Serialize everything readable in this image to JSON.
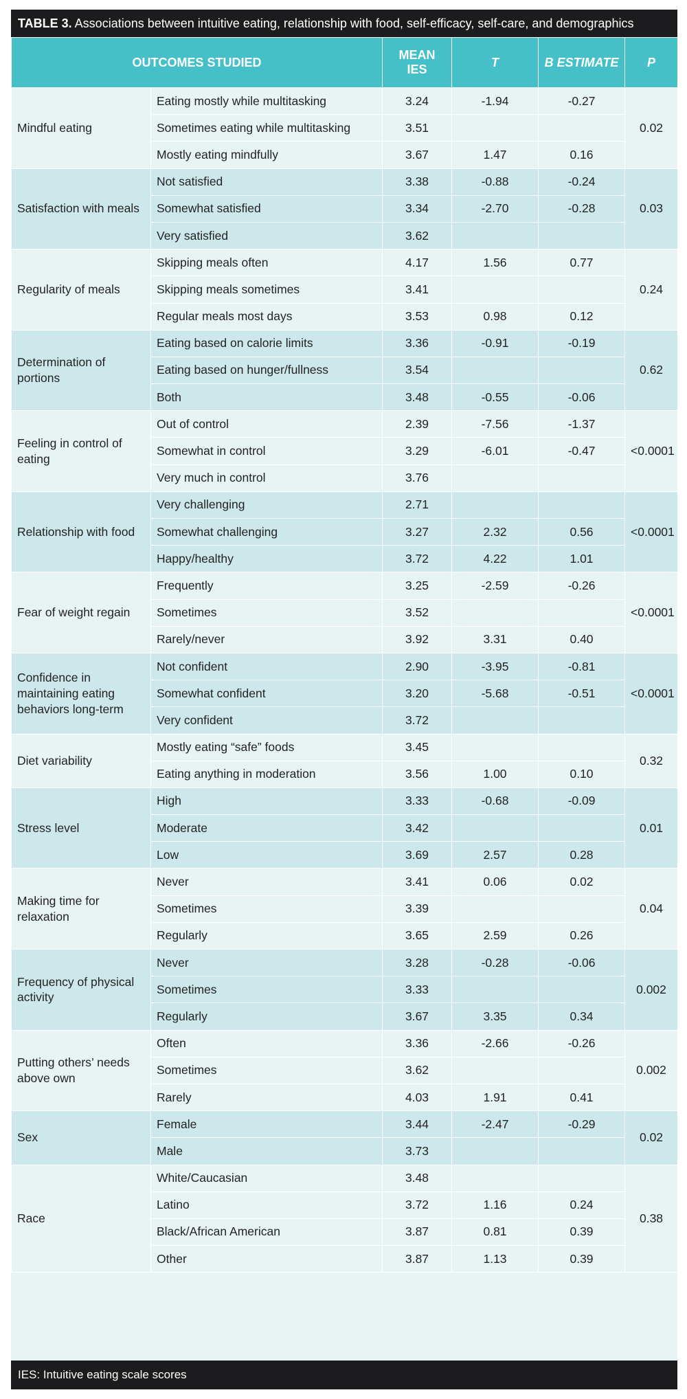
{
  "caption": {
    "label": "TABLE 3.",
    "text": " Associations between intuitive eating, relationship with food, self-efficacy, self-care, and demographics"
  },
  "headers": {
    "outcomes": "OUTCOMES STUDIED",
    "mean_ies": "MEAN IES",
    "t": "T",
    "b": "B ESTIMATE",
    "p": "P"
  },
  "groups": [
    {
      "category": "Mindful eating",
      "p": "0.02",
      "rows": [
        {
          "option": "Eating mostly while multitasking",
          "mean": "3.24",
          "t": "-1.94",
          "b": "-0.27"
        },
        {
          "option": "Sometimes eating while multitasking",
          "mean": "3.51",
          "t": "",
          "b": ""
        },
        {
          "option": "Mostly eating mindfully",
          "mean": "3.67",
          "t": "1.47",
          "b": "0.16"
        }
      ]
    },
    {
      "category": "Satisfaction with meals",
      "p": "0.03",
      "rows": [
        {
          "option": "Not satisfied",
          "mean": "3.38",
          "t": "-0.88",
          "b": "-0.24"
        },
        {
          "option": "Somewhat satisfied",
          "mean": "3.34",
          "t": "-2.70",
          "b": "-0.28"
        },
        {
          "option": "Very satisfied",
          "mean": "3.62",
          "t": "",
          "b": ""
        }
      ]
    },
    {
      "category": "Regularity of meals",
      "p": "0.24",
      "rows": [
        {
          "option": "Skipping meals often",
          "mean": "4.17",
          "t": "1.56",
          "b": "0.77"
        },
        {
          "option": "Skipping meals sometimes",
          "mean": "3.41",
          "t": "",
          "b": ""
        },
        {
          "option": "Regular meals most days",
          "mean": "3.53",
          "t": "0.98",
          "b": "0.12"
        }
      ]
    },
    {
      "category": "Determination of portions",
      "p": "0.62",
      "rows": [
        {
          "option": "Eating based on calorie limits",
          "mean": "3.36",
          "t": "-0.91",
          "b": "-0.19"
        },
        {
          "option": "Eating based on hunger/fullness",
          "mean": "3.54",
          "t": "",
          "b": ""
        },
        {
          "option": "Both",
          "mean": "3.48",
          "t": "-0.55",
          "b": "-0.06"
        }
      ]
    },
    {
      "category": "Feeling in control of eating",
      "p": "<0.0001",
      "rows": [
        {
          "option": "Out of control",
          "mean": "2.39",
          "t": "-7.56",
          "b": "-1.37"
        },
        {
          "option": "Somewhat in control",
          "mean": "3.29",
          "t": "-6.01",
          "b": "-0.47"
        },
        {
          "option": "Very much in control",
          "mean": "3.76",
          "t": "",
          "b": ""
        }
      ]
    },
    {
      "category": "Relationship with food",
      "p": "<0.0001",
      "rows": [
        {
          "option": "Very challenging",
          "mean": "2.71",
          "t": "",
          "b": ""
        },
        {
          "option": "Somewhat challenging",
          "mean": "3.27",
          "t": "2.32",
          "b": "0.56"
        },
        {
          "option": "Happy/healthy",
          "mean": "3.72",
          "t": "4.22",
          "b": "1.01"
        }
      ]
    },
    {
      "category": "Fear of weight regain",
      "p": "<0.0001",
      "rows": [
        {
          "option": "Frequently",
          "mean": "3.25",
          "t": "-2.59",
          "b": "-0.26"
        },
        {
          "option": "Sometimes",
          "mean": "3.52",
          "t": "",
          "b": ""
        },
        {
          "option": "Rarely/never",
          "mean": "3.92",
          "t": "3.31",
          "b": "0.40"
        }
      ]
    },
    {
      "category": "Confidence in maintaining eating behaviors long-term",
      "p": "<0.0001",
      "rows": [
        {
          "option": "Not confident",
          "mean": "2.90",
          "t": "-3.95",
          "b": "-0.81"
        },
        {
          "option": "Somewhat confident",
          "mean": "3.20",
          "t": "-5.68",
          "b": "-0.51"
        },
        {
          "option": "Very confident",
          "mean": "3.72",
          "t": "",
          "b": ""
        }
      ]
    },
    {
      "category": "Diet variability",
      "p": "0.32",
      "rows": [
        {
          "option": "Mostly eating “safe” foods",
          "mean": "3.45",
          "t": "",
          "b": ""
        },
        {
          "option": "Eating anything in moderation",
          "mean": "3.56",
          "t": "1.00",
          "b": "0.10"
        }
      ]
    },
    {
      "category": "Stress level",
      "p": "0.01",
      "rows": [
        {
          "option": "High",
          "mean": "3.33",
          "t": "-0.68",
          "b": "-0.09"
        },
        {
          "option": "Moderate",
          "mean": "3.42",
          "t": "",
          "b": ""
        },
        {
          "option": "Low",
          "mean": "3.69",
          "t": "2.57",
          "b": "0.28"
        }
      ]
    },
    {
      "category": "Making time for relaxation",
      "p": "0.04",
      "rows": [
        {
          "option": "Never",
          "mean": "3.41",
          "t": "0.06",
          "b": "0.02"
        },
        {
          "option": "Sometimes",
          "mean": "3.39",
          "t": "",
          "b": ""
        },
        {
          "option": "Regularly",
          "mean": "3.65",
          "t": "2.59",
          "b": "0.26"
        }
      ]
    },
    {
      "category": "Frequency of physical activity",
      "p": "0.002",
      "rows": [
        {
          "option": "Never",
          "mean": "3.28",
          "t": "-0.28",
          "b": "-0.06"
        },
        {
          "option": "Sometimes",
          "mean": "3.33",
          "t": "",
          "b": ""
        },
        {
          "option": "Regularly",
          "mean": "3.67",
          "t": "3.35",
          "b": "0.34"
        }
      ]
    },
    {
      "category": "Putting others’ needs above own",
      "p": "0.002",
      "rows": [
        {
          "option": "Often",
          "mean": "3.36",
          "t": "-2.66",
          "b": "-0.26"
        },
        {
          "option": "Sometimes",
          "mean": "3.62",
          "t": "",
          "b": ""
        },
        {
          "option": "Rarely",
          "mean": "4.03",
          "t": "1.91",
          "b": "0.41"
        }
      ]
    },
    {
      "category": "Sex",
      "p": "0.02",
      "rows": [
        {
          "option": "Female",
          "mean": "3.44",
          "t": "-2.47",
          "b": "-0.29"
        },
        {
          "option": "Male",
          "mean": "3.73",
          "t": "",
          "b": ""
        }
      ]
    },
    {
      "category": "Race",
      "p": "0.38",
      "rows": [
        {
          "option": "White/Caucasian",
          "mean": "3.48",
          "t": "",
          "b": ""
        },
        {
          "option": "Latino",
          "mean": "3.72",
          "t": "1.16",
          "b": "0.24"
        },
        {
          "option": "Black/African American",
          "mean": "3.87",
          "t": "0.81",
          "b": "0.39"
        },
        {
          "option": "Other",
          "mean": "3.87",
          "t": "1.13",
          "b": "0.39"
        }
      ]
    }
  ],
  "footer": "IES: Intuitive eating scale scores"
}
